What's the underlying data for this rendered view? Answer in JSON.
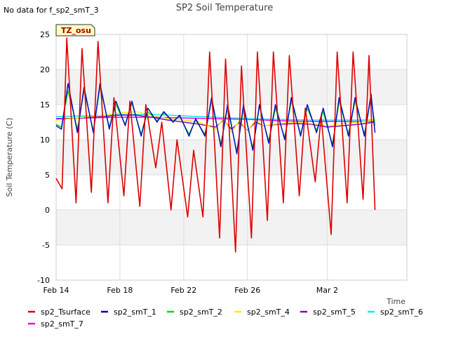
{
  "note_text": "No data for f_sp2_smT_3",
  "tag_label": "TZ_osu",
  "chart_data": {
    "type": "line",
    "title": "SP2 Soil Temperature",
    "xlabel": "Time",
    "ylabel": "Soil Temperature (C)",
    "ylim": [
      -10,
      25
    ],
    "xlim": [
      "2024-02-14",
      "2024-03-07"
    ],
    "yticks": [
      -10,
      -5,
      0,
      5,
      10,
      15,
      20,
      25
    ],
    "xticks": [
      {
        "label": "Feb 14",
        "date": "2024-02-14"
      },
      {
        "label": "Feb 18",
        "date": "2024-02-18"
      },
      {
        "label": "Feb 22",
        "date": "2024-02-22"
      },
      {
        "label": "Feb 26",
        "date": "2024-02-26"
      },
      {
        "label": "Mar 2",
        "date": "2024-03-02"
      }
    ],
    "background_bands": "alternating gray/white every 5 °C",
    "legend_position": "bottom",
    "series": [
      {
        "name": "sp2_Tsurface",
        "color": "#dd0000",
        "x": [
          "2024-02-14",
          "2024-02-14T09:00",
          "2024-02-14T16:00",
          "2024-02-15T06:00",
          "2024-02-15T15:00",
          "2024-02-16T05:00",
          "2024-02-16T15:00",
          "2024-02-17T06:00",
          "2024-02-17T15:00",
          "2024-02-18T06:00",
          "2024-02-18T15:00",
          "2024-02-19T06:00",
          "2024-02-19T15:00",
          "2024-02-20T06:00",
          "2024-02-20T15:00",
          "2024-02-21T05:00",
          "2024-02-21T14:00",
          "2024-02-22T06:00",
          "2024-02-22T15:00",
          "2024-02-23T05:00",
          "2024-02-23T15:00",
          "2024-02-24T06:00",
          "2024-02-24T15:00",
          "2024-02-25T06:00",
          "2024-02-25T15:00",
          "2024-02-26T06:00",
          "2024-02-26T15:00",
          "2024-02-27T06:00",
          "2024-02-27T15:00",
          "2024-02-28T06:00",
          "2024-02-28T15:00",
          "2024-02-29T06:00",
          "2024-02-29T15:00",
          "2024-03-01T06:00",
          "2024-03-01T15:00",
          "2024-03-02T06:00",
          "2024-03-02T15:00",
          "2024-03-03T06:00",
          "2024-03-03T15:00",
          "2024-03-04T06:00",
          "2024-03-04T15:00",
          "2024-03-05T00:00"
        ],
        "y": [
          4.5,
          3.0,
          24.5,
          1.0,
          23.0,
          2.5,
          24.0,
          1.0,
          16.0,
          2.0,
          15.5,
          0.5,
          15.0,
          6.0,
          12.5,
          0.0,
          10.0,
          -1.0,
          8.5,
          -1.0,
          22.5,
          -4.0,
          21.5,
          -6.0,
          20.5,
          -4.0,
          22.5,
          -1.5,
          22.5,
          1.0,
          22.0,
          2.0,
          14.5,
          4.0,
          13.5,
          -3.5,
          22.5,
          1.0,
          22.5,
          1.5,
          22.0,
          0.0
        ]
      },
      {
        "name": "sp2_smT_1",
        "color": "#0000cc",
        "x": [
          "2024-02-14",
          "2024-02-14T08:00",
          "2024-02-14T18:00",
          "2024-02-15T08:00",
          "2024-02-15T18:00",
          "2024-02-16T08:00",
          "2024-02-16T18:00",
          "2024-02-17T08:00",
          "2024-02-17T18:00",
          "2024-02-18T08:00",
          "2024-02-18T18:00",
          "2024-02-19T08:00",
          "2024-02-19T18:00",
          "2024-02-20T08:00",
          "2024-02-20T18:00",
          "2024-02-21T08:00",
          "2024-02-21T18:00",
          "2024-02-22T08:00",
          "2024-02-22T18:00",
          "2024-02-23T08:00",
          "2024-02-23T18:00",
          "2024-02-24T08:00",
          "2024-02-24T18:00",
          "2024-02-25T08:00",
          "2024-02-25T18:00",
          "2024-02-26T08:00",
          "2024-02-26T18:00",
          "2024-02-27T08:00",
          "2024-02-27T18:00",
          "2024-02-28T08:00",
          "2024-02-28T18:00",
          "2024-02-29T08:00",
          "2024-02-29T18:00",
          "2024-03-01T08:00",
          "2024-03-01T18:00",
          "2024-03-02T08:00",
          "2024-03-02T18:00",
          "2024-03-03T08:00",
          "2024-03-03T18:00",
          "2024-03-04T08:00",
          "2024-03-04T18:00",
          "2024-03-05T00:00"
        ],
        "y": [
          12.0,
          11.5,
          18.0,
          11.0,
          17.5,
          11.0,
          18.0,
          11.5,
          15.5,
          12.0,
          15.5,
          10.5,
          14.5,
          12.5,
          14.0,
          12.5,
          13.5,
          10.5,
          13.0,
          10.5,
          16.0,
          9.0,
          15.0,
          8.0,
          15.0,
          8.5,
          15.0,
          9.5,
          15.0,
          10.0,
          16.0,
          10.5,
          15.0,
          11.0,
          14.5,
          9.0,
          16.0,
          10.5,
          16.0,
          10.5,
          16.5,
          11.0
        ]
      },
      {
        "name": "sp2_smT_2",
        "color": "#00dd00",
        "x": [
          "2024-02-14",
          "2024-02-14T08:00",
          "2024-02-14T18:00",
          "2024-02-15T08:00",
          "2024-02-15T18:00",
          "2024-02-16T08:00",
          "2024-02-16T18:00",
          "2024-02-17T08:00",
          "2024-02-17T18:00",
          "2024-02-18T08:00",
          "2024-02-18T18:00",
          "2024-02-19T08:00",
          "2024-02-19T18:00",
          "2024-02-20T08:00",
          "2024-02-20T18:00",
          "2024-02-21T08:00",
          "2024-02-21T18:00",
          "2024-02-22T08:00",
          "2024-02-22T18:00",
          "2024-02-23T08:00",
          "2024-02-23T18:00",
          "2024-02-24T08:00",
          "2024-02-24T18:00",
          "2024-02-25T08:00",
          "2024-02-25T18:00",
          "2024-02-26T08:00",
          "2024-02-26T18:00",
          "2024-02-27T08:00",
          "2024-02-27T18:00",
          "2024-02-28T08:00",
          "2024-02-28T18:00",
          "2024-02-29T08:00",
          "2024-02-29T18:00",
          "2024-03-01T08:00",
          "2024-03-01T18:00",
          "2024-03-02T08:00",
          "2024-03-02T18:00",
          "2024-03-03T08:00",
          "2024-03-03T18:00",
          "2024-03-04T08:00",
          "2024-03-04T18:00",
          "2024-03-05T00:00"
        ],
        "y": [
          12.2,
          11.8,
          17.0,
          11.5,
          17.0,
          11.3,
          17.5,
          11.8,
          15.0,
          12.2,
          15.2,
          10.8,
          14.0,
          12.7,
          13.8,
          12.7,
          13.3,
          10.8,
          12.8,
          10.8,
          15.5,
          9.3,
          14.5,
          8.3,
          14.5,
          8.8,
          14.7,
          9.8,
          14.5,
          10.3,
          15.5,
          10.8,
          14.5,
          11.3,
          14.0,
          9.3,
          15.5,
          10.8,
          15.5,
          10.8,
          16.0,
          12.0
        ]
      },
      {
        "name": "sp2_smT_4",
        "color": "#ffee00",
        "x": [
          "2024-02-14",
          "2024-02-15T00:00",
          "2024-02-16T00:00",
          "2024-02-17T00:00",
          "2024-02-18T00:00",
          "2024-02-19T00:00",
          "2024-02-20T00:00",
          "2024-02-21T00:00",
          "2024-02-22T00:00",
          "2024-02-23T00:00",
          "2024-02-24T00:00",
          "2024-02-24T12:00",
          "2024-02-25T00:00",
          "2024-02-25T12:00",
          "2024-02-26T00:00",
          "2024-02-26T12:00",
          "2024-02-27T00:00",
          "2024-02-28T00:00",
          "2024-02-29T00:00",
          "2024-03-01T00:00",
          "2024-03-02T00:00",
          "2024-03-03T00:00",
          "2024-03-04T00:00",
          "2024-03-05T00:00"
        ],
        "y": [
          12.8,
          13.0,
          13.3,
          13.5,
          13.8,
          14.0,
          13.5,
          13.0,
          12.8,
          12.5,
          11.5,
          13.0,
          11.0,
          12.8,
          11.2,
          12.8,
          12.0,
          12.3,
          12.5,
          12.3,
          12.0,
          12.3,
          12.5,
          12.8
        ]
      },
      {
        "name": "sp2_smT_5",
        "color": "#8800cc",
        "x": [
          "2024-02-14",
          "2024-02-15T00:00",
          "2024-02-16T00:00",
          "2024-02-17T00:00",
          "2024-02-18T00:00",
          "2024-02-19T00:00",
          "2024-02-20T00:00",
          "2024-02-21T00:00",
          "2024-02-22T00:00",
          "2024-02-23T00:00",
          "2024-02-24T00:00",
          "2024-02-24T12:00",
          "2024-02-25T00:00",
          "2024-02-25T12:00",
          "2024-02-26T00:00",
          "2024-02-26T12:00",
          "2024-02-27T00:00",
          "2024-02-28T00:00",
          "2024-02-29T00:00",
          "2024-03-01T00:00",
          "2024-03-02T00:00",
          "2024-03-03T00:00",
          "2024-03-04T00:00",
          "2024-03-05T00:00"
        ],
        "y": [
          13.0,
          13.0,
          13.2,
          13.3,
          13.5,
          13.5,
          13.2,
          12.8,
          12.5,
          12.2,
          11.8,
          12.8,
          11.5,
          12.5,
          11.3,
          12.5,
          12.0,
          12.2,
          12.3,
          12.2,
          11.8,
          12.0,
          12.2,
          12.5
        ]
      },
      {
        "name": "sp2_smT_6",
        "color": "#00eeee",
        "x": [
          "2024-02-14",
          "2024-02-16T00:00",
          "2024-02-18T00:00",
          "2024-02-20T00:00",
          "2024-02-22T00:00",
          "2024-02-24T00:00",
          "2024-02-26T00:00",
          "2024-02-28T00:00",
          "2024-03-01T00:00",
          "2024-03-03T00:00",
          "2024-03-05T00:00"
        ],
        "y": [
          13.3,
          13.4,
          13.6,
          13.6,
          13.4,
          13.2,
          13.0,
          12.9,
          12.8,
          12.8,
          12.8
        ]
      },
      {
        "name": "sp2_smT_7",
        "color": "#ee00ee",
        "x": [
          "2024-02-14",
          "2024-02-16T00:00",
          "2024-02-18T00:00",
          "2024-02-20T00:00",
          "2024-02-22T00:00",
          "2024-02-24T00:00",
          "2024-02-26T00:00",
          "2024-02-28T00:00",
          "2024-03-01T00:00",
          "2024-03-03T00:00",
          "2024-03-05T00:00"
        ],
        "y": [
          13.0,
          13.1,
          13.2,
          13.2,
          13.1,
          13.0,
          12.9,
          12.7,
          12.6,
          12.6,
          12.6
        ]
      }
    ]
  }
}
